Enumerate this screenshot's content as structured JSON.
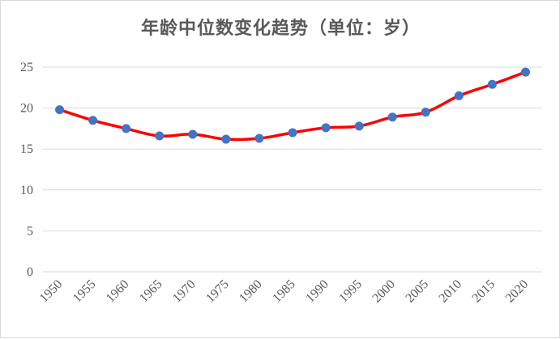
{
  "chart_data": {
    "type": "line",
    "title": "年龄中位数变化趋势（单位：岁）",
    "xlabel": "",
    "ylabel": "",
    "categories": [
      "1950",
      "1955",
      "1960",
      "1965",
      "1970",
      "1975",
      "1980",
      "1985",
      "1990",
      "1995",
      "2000",
      "2005",
      "2010",
      "2015",
      "2020"
    ],
    "series": [
      {
        "name": "",
        "values": [
          19.8,
          18.5,
          17.5,
          16.6,
          16.8,
          16.2,
          16.3,
          17.0,
          17.6,
          17.8,
          18.9,
          19.5,
          21.5,
          22.9,
          24.4
        ]
      }
    ],
    "ylim": [
      0,
      25
    ],
    "yticks": [
      0,
      5,
      10,
      15,
      20,
      25
    ],
    "grid": true,
    "legend": "none",
    "colors": {
      "line": "#ff0000",
      "marker": "#4472c4",
      "grid": "#d9d9d9",
      "text": "#595959"
    }
  }
}
